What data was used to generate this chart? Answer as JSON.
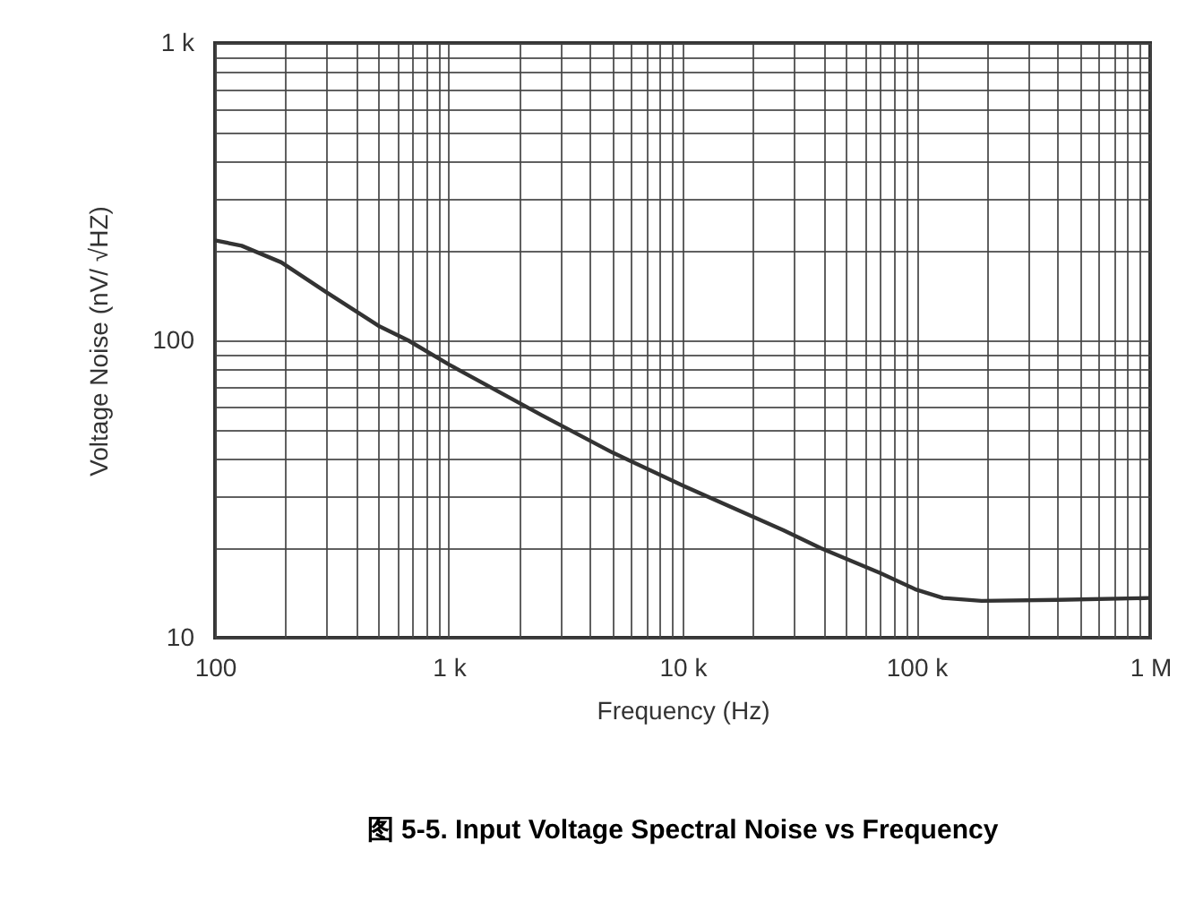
{
  "chart_data": {
    "type": "line",
    "title": "图 5-5. Input Voltage Spectral Noise vs Frequency",
    "xlabel": "Frequency (Hz)",
    "ylabel": "Voltage Noise (nV/ √HZ)",
    "log": "xy",
    "grid": true,
    "marker": "none",
    "line_style": "solid",
    "x": [
      100,
      130,
      192,
      300,
      500,
      670,
      1000,
      2500,
      5000,
      10000,
      27000,
      39000,
      70000,
      100000,
      130000,
      190000,
      400000,
      1000000
    ],
    "series": [
      {
        "color": "#333333",
        "values": [
          217,
          208,
          183,
          145,
          112,
          100,
          83,
          56,
          42,
          32.5,
          23,
          20,
          16.5,
          14.5,
          13.6,
          13.3,
          13.4,
          13.6
        ]
      }
    ],
    "xlim": [
      100,
      1000000
    ],
    "ylim": [
      10,
      1000
    ],
    "xticks": [
      100,
      {
        "value": 200,
        "label": null
      },
      {
        "value": 300,
        "label": null
      },
      {
        "value": 400,
        "label": null
      },
      {
        "value": 500,
        "label": null
      },
      {
        "value": 600,
        "label": null
      },
      {
        "value": 700,
        "label": null
      },
      {
        "value": 800,
        "label": null
      },
      {
        "value": 900,
        "label": null
      },
      {
        "value": 1000,
        "label": "1 k"
      },
      {
        "value": 2000,
        "label": null
      },
      {
        "value": 3000,
        "label": null
      },
      {
        "value": 4000,
        "label": null
      },
      {
        "value": 5000,
        "label": null
      },
      {
        "value": 6000,
        "label": null
      },
      {
        "value": 7000,
        "label": null
      },
      {
        "value": 8000,
        "label": null
      },
      {
        "value": 9000,
        "label": null
      },
      {
        "value": 10000,
        "label": "10 k"
      },
      {
        "value": 20000,
        "label": null
      },
      {
        "value": 30000,
        "label": null
      },
      {
        "value": 40000,
        "label": null
      },
      {
        "value": 50000,
        "label": null
      },
      {
        "value": 60000,
        "label": null
      },
      {
        "value": 70000,
        "label": null
      },
      {
        "value": 80000,
        "label": null
      },
      {
        "value": 90000,
        "label": null
      },
      {
        "value": 100000,
        "label": "100 k"
      },
      {
        "value": 200000,
        "label": null
      },
      {
        "value": 300000,
        "label": null
      },
      {
        "value": 400000,
        "label": null
      },
      {
        "value": 500000,
        "label": null
      },
      {
        "value": 600000,
        "label": null
      },
      {
        "value": 700000,
        "label": null
      },
      {
        "value": 800000,
        "label": null
      },
      {
        "value": 900000,
        "label": null
      },
      {
        "value": 1000000,
        "label": "1 M"
      }
    ],
    "yticks": [
      10,
      {
        "value": 20,
        "label": null
      },
      {
        "value": 30,
        "label": null
      },
      {
        "value": 40,
        "label": null
      },
      {
        "value": 50,
        "label": null
      },
      {
        "value": 60,
        "label": null
      },
      {
        "value": 70,
        "label": null
      },
      {
        "value": 80,
        "label": null
      },
      {
        "value": 90,
        "label": null
      },
      100,
      {
        "value": 200,
        "label": null
      },
      {
        "value": 300,
        "label": null
      },
      {
        "value": 400,
        "label": null
      },
      {
        "value": 500,
        "label": null
      },
      {
        "value": 600,
        "label": null
      },
      {
        "value": 700,
        "label": null
      },
      {
        "value": 800,
        "label": null
      },
      {
        "value": 900,
        "label": null
      },
      {
        "value": 1000,
        "label": "1 k"
      }
    ]
  }
}
